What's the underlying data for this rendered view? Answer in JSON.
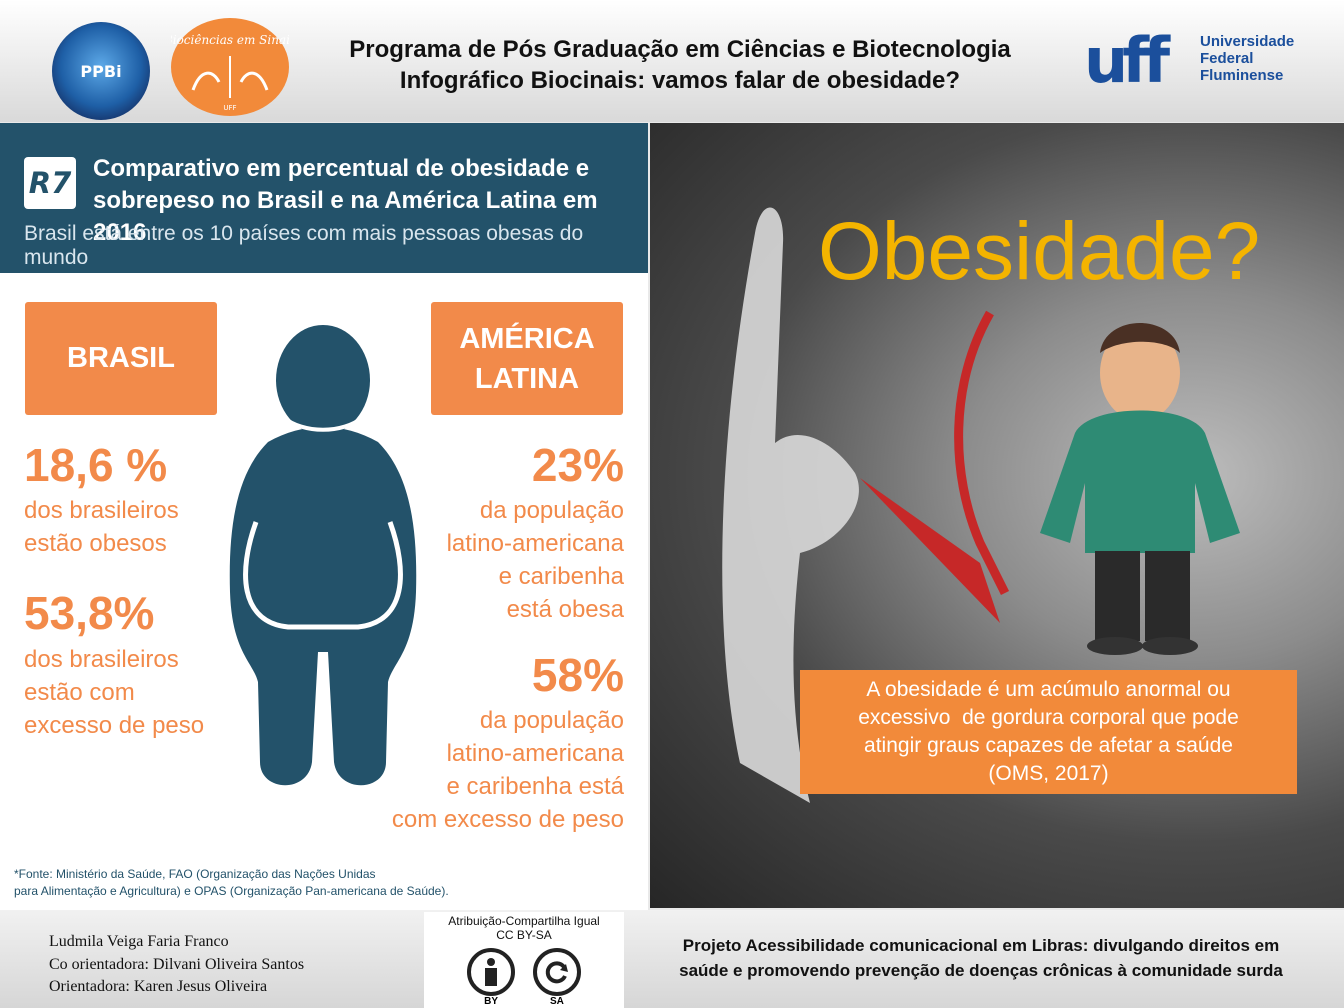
{
  "header": {
    "title_line1": "Programa de Pós Graduação em Ciências e Biotecnologia",
    "title_line2": "Infográfico Biocinais: vamos falar de obesidade?",
    "ppbi_logo_text": "PPBi",
    "biociencias_logo_text": "Biociências em Sinais",
    "biociencias_logo_sub": "UFF",
    "uff_logo_text": "uff",
    "uff_name": [
      "Universidade",
      "Federal",
      "Fluminense"
    ]
  },
  "infographic": {
    "badge": "R7",
    "title_line1": "Comparativo em percentual de obesidade e",
    "title_line2": "sobrepeso no Brasil e na América Latina em 2016",
    "subtitle": "Brasil está entre os 10 países com mais pessoas obesas do mundo",
    "brasil_label": "BRASIL",
    "america_label_line1": "AMÉRICA",
    "america_label_line2": "LATINA",
    "brasil_stats": [
      {
        "value": "18,6 %",
        "lines": [
          "dos brasileiros",
          "estão obesos"
        ]
      },
      {
        "value": "53,8%",
        "lines": [
          "dos brasileiros",
          "estão com",
          "excesso de peso"
        ]
      }
    ],
    "america_stats": [
      {
        "value": "23%",
        "lines": [
          "da população",
          "latino-americana",
          "e caribenha",
          "está obesa"
        ]
      },
      {
        "value": "58%",
        "lines": [
          "da população",
          "latino-americana",
          "e caribenha está",
          "com excesso de peso"
        ]
      }
    ],
    "source_line1": "*Fonte: Ministério da Saúde, FAO (Organização das Nações Unidas",
    "source_line2": "para Alimentação e Agricultura) e OPAS (Organização Pan-americana de Saúde)."
  },
  "photo": {
    "headline": "Obesidade?",
    "definition_lines": [
      "A obesidade é um acúmulo anormal ou",
      "excessivo  de gordura corporal que pode",
      "atingir graus capazes de afetar a saúde",
      "(OMS, 2017)"
    ]
  },
  "footer": {
    "authors": [
      "Ludmila Veiga Faria Franco",
      "Co orientadora: Dilvani Oliveira Santos",
      "Orientadora: Karen Jesus Oliveira"
    ],
    "license_title_line1": "Atribuição-Compartilha Igual",
    "license_title_line2": "CC BY-SA",
    "license_by": "BY",
    "license_sa": "SA",
    "project_line1": "Projeto Acessibilidade comunicacional em Libras: divulgando direitos em",
    "project_line2": "saúde e promovendo prevenção de doenças crônicas à comunidade surda"
  },
  "colors": {
    "infographic_navy": "#23526a",
    "infographic_orange": "#f28a4a",
    "headline_yellow": "#f4b400",
    "uff_blue": "#1b4f9c"
  }
}
